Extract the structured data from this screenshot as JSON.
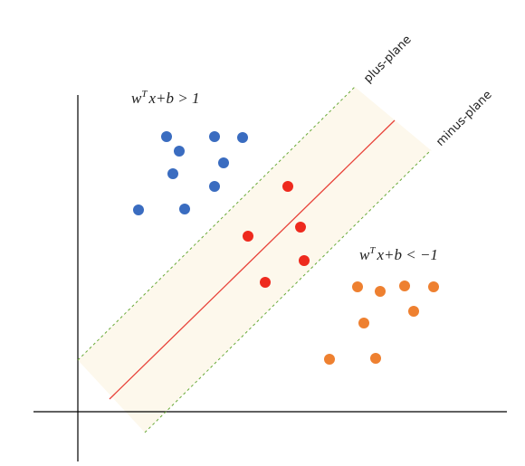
{
  "labels": {
    "plus_plane": "plus-plane",
    "minus_plane": "minus-plane"
  },
  "formulas": {
    "top": {
      "base": "w",
      "sup": "T",
      "rest": "x+b > 1"
    },
    "bottom": {
      "base": "w",
      "sup": "T",
      "rest": "x+b < −1"
    }
  }
}
